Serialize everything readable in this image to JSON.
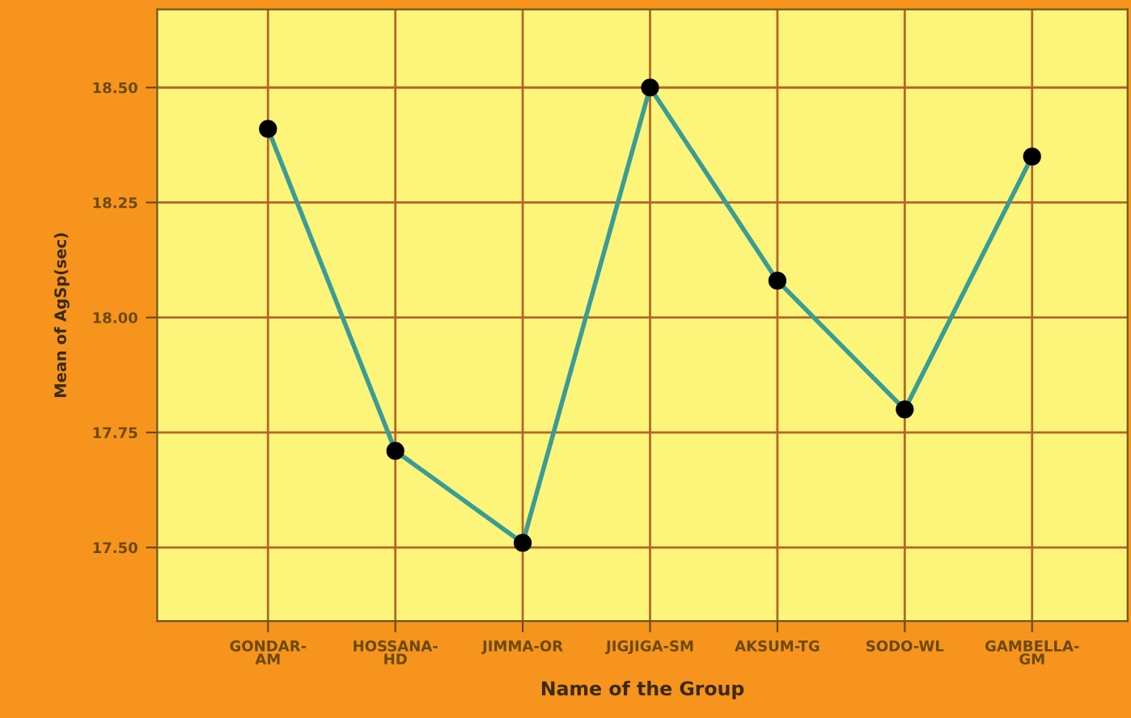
{
  "chart_data": {
    "type": "line",
    "xlabel": "Name of the Group",
    "ylabel": "Mean of AgSp(sec)",
    "categories": [
      "GONDAR-\nAM",
      "HOSSANA-\nHD",
      "JIMMA-OR",
      "JIGJIGA-SM",
      "AKSUM-TG",
      "SODO-WL",
      "GAMBELLA-\nGM"
    ],
    "series": [
      {
        "color": "#3a9c96",
        "values": [
          18.41,
          17.71,
          17.51,
          18.5,
          18.08,
          17.8,
          18.35
        ]
      }
    ],
    "ylim": [
      17.34,
      18.67
    ],
    "yticks": [
      {
        "value": 17.5,
        "label": "17.50"
      },
      {
        "value": 17.75,
        "label": "17.75"
      },
      {
        "value": 18.0,
        "label": "18.00"
      },
      {
        "value": 18.25,
        "label": "18.25"
      },
      {
        "value": 18.5,
        "label": "18.50"
      }
    ],
    "grid": true,
    "marker": "circle",
    "line_style": "solid"
  }
}
